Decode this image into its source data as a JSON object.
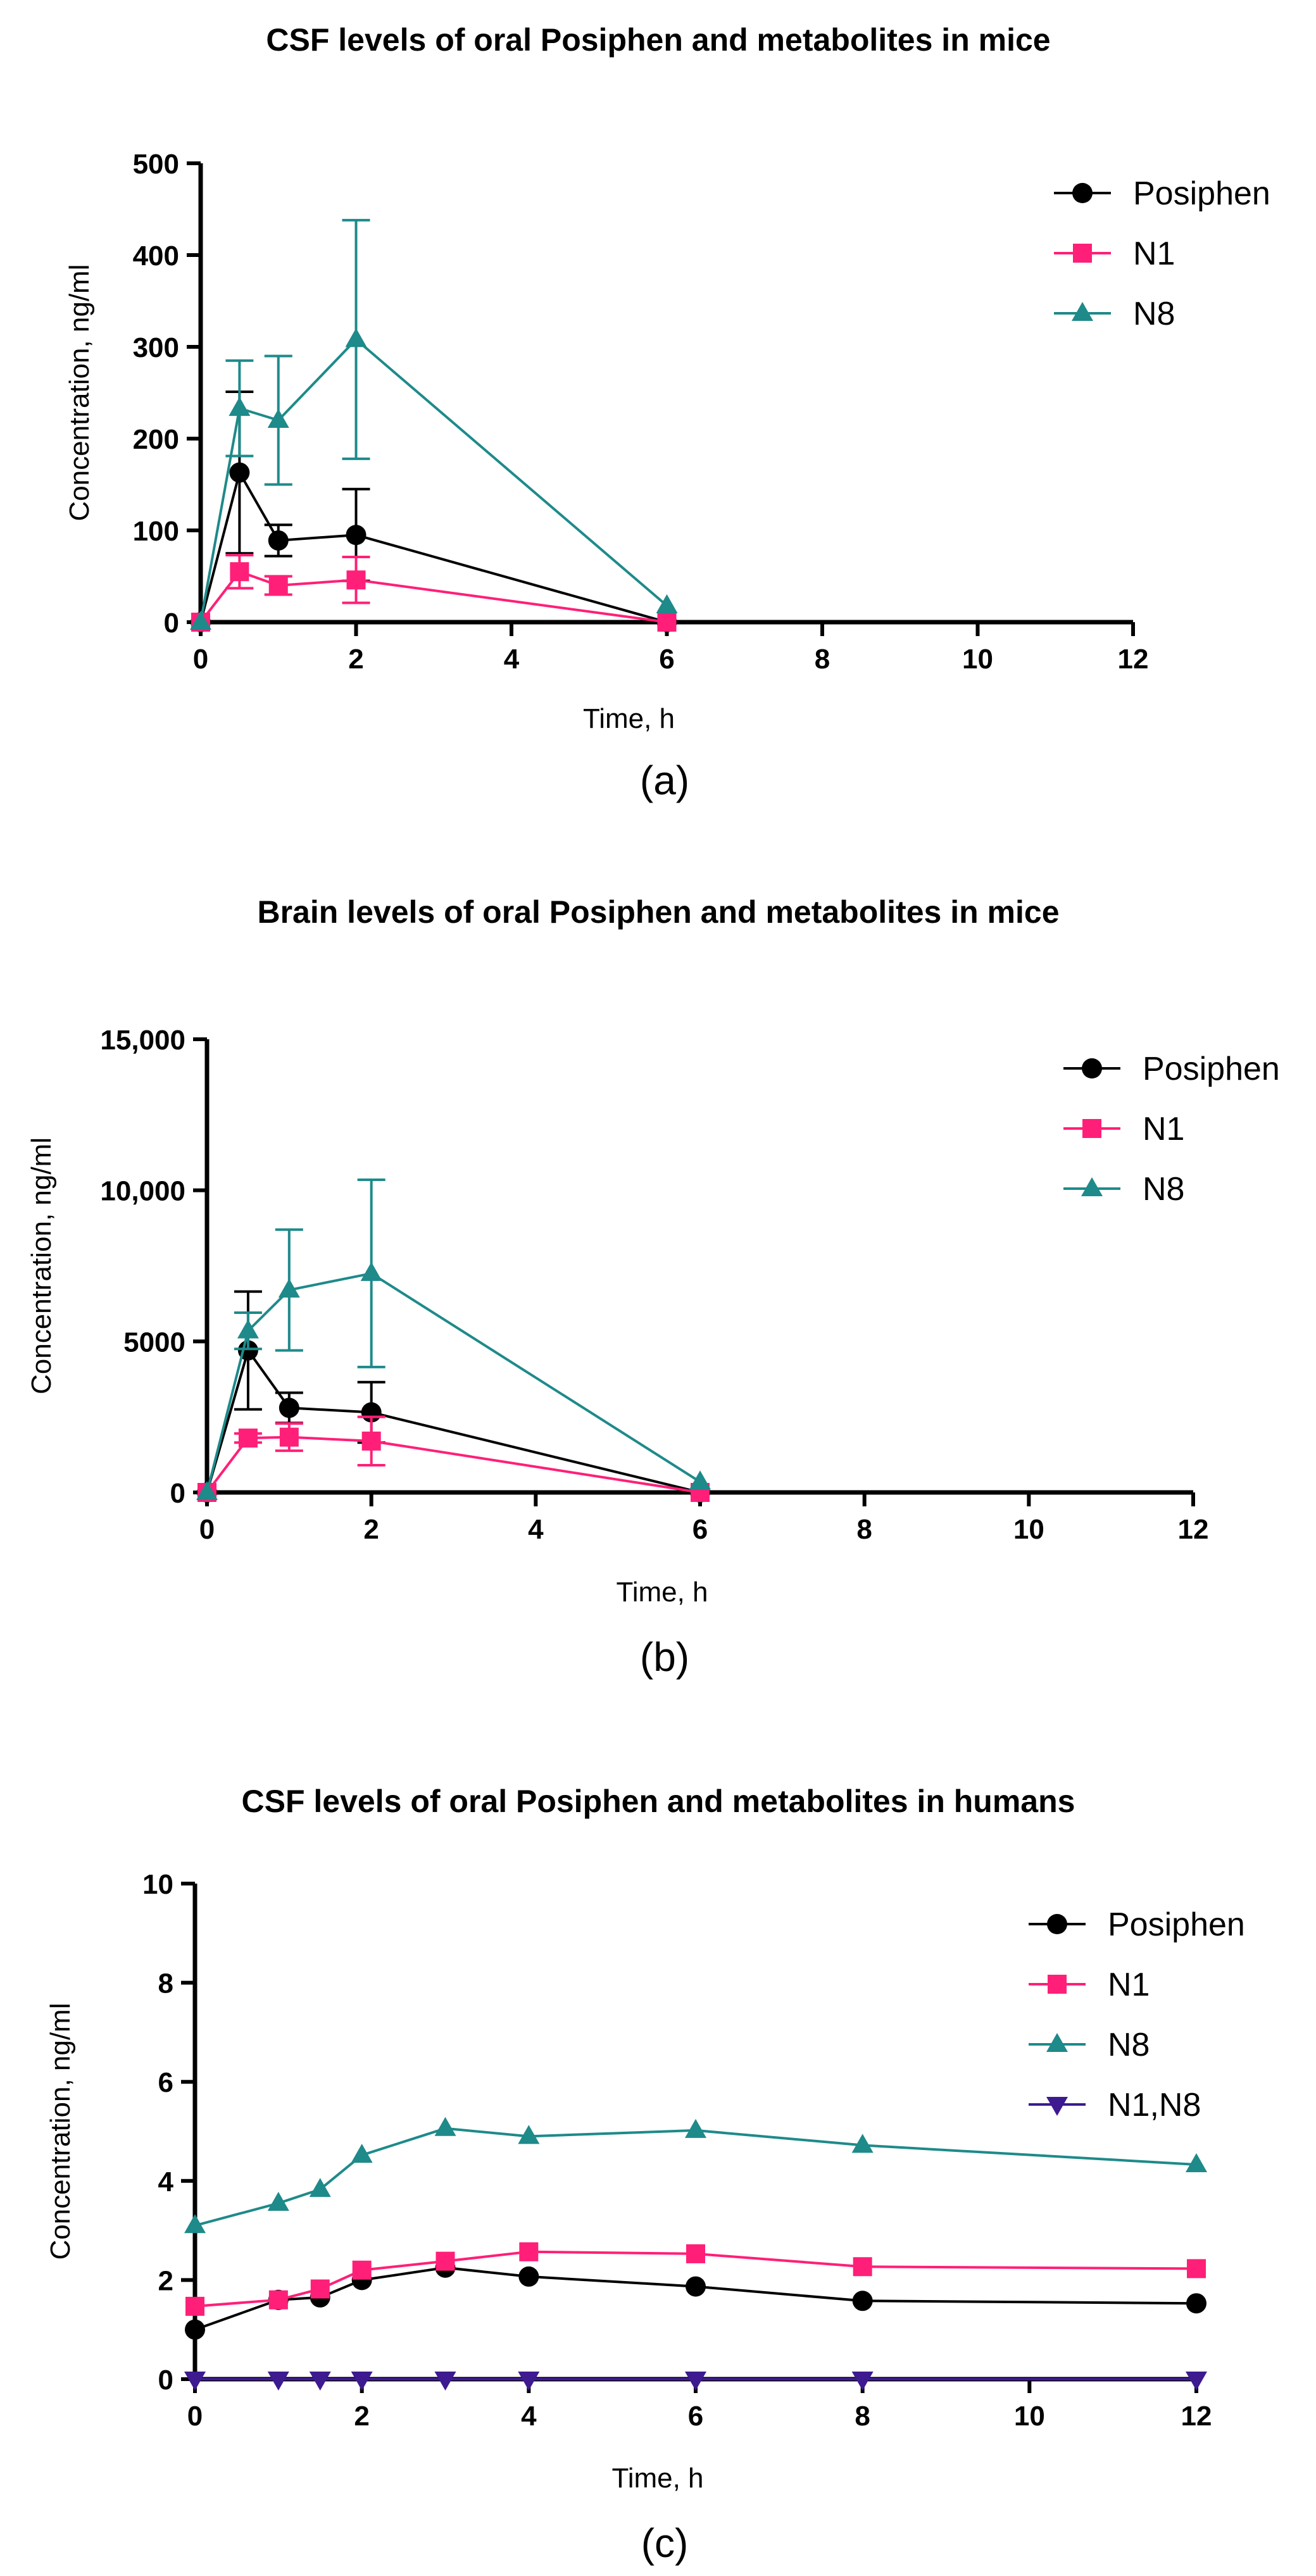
{
  "chart_data": [
    {
      "type": "line",
      "title": "CSF levels of oral Posiphen and metabolites in mice",
      "xlabel": "Time, h",
      "ylabel": "Concentration, ng/ml",
      "caption": "(a)",
      "xlim": [
        0,
        12
      ],
      "ylim": [
        0,
        500
      ],
      "xticks": [
        0,
        2,
        4,
        6,
        8,
        10,
        12
      ],
      "xtick_labels": [
        "0",
        "2",
        "4",
        "6",
        "8",
        "10",
        "12"
      ],
      "yticks": [
        0,
        100,
        200,
        300,
        400,
        500
      ],
      "ytick_labels": [
        "0",
        "100",
        "200",
        "300",
        "400",
        "500"
      ],
      "legend_position": "top-right",
      "series": [
        {
          "name": "Posiphen",
          "color": "#000000",
          "marker": "circle",
          "x": [
            0,
            0.5,
            1,
            2,
            6
          ],
          "y": [
            0,
            163,
            89,
            95,
            0
          ],
          "err": [
            0,
            88,
            17,
            50,
            0
          ]
        },
        {
          "name": "N1",
          "color": "#ff1f78",
          "marker": "square",
          "x": [
            0,
            0.5,
            1,
            2,
            6
          ],
          "y": [
            0,
            55,
            40,
            46,
            0
          ],
          "err": [
            0,
            18,
            10,
            25,
            0
          ]
        },
        {
          "name": "N8",
          "color": "#1e8a8a",
          "marker": "triangle",
          "x": [
            0,
            0.5,
            1,
            2,
            6
          ],
          "y": [
            0,
            233,
            220,
            308,
            18
          ],
          "err": [
            0,
            52,
            70,
            130,
            0
          ]
        }
      ]
    },
    {
      "type": "line",
      "title": "Brain levels of oral Posiphen and metabolites in mice",
      "xlabel": "Time, h",
      "ylabel": "Concentration, ng/ml",
      "caption": "(b)",
      "xlim": [
        0,
        12
      ],
      "ylim": [
        0,
        15000
      ],
      "xticks": [
        0,
        2,
        4,
        6,
        8,
        10,
        12
      ],
      "xtick_labels": [
        "0",
        "2",
        "4",
        "6",
        "8",
        "10",
        "12"
      ],
      "yticks": [
        0,
        5000,
        10000,
        15000
      ],
      "ytick_labels": [
        "0",
        "5000",
        "10,000",
        "15,000"
      ],
      "legend_position": "top-right",
      "series": [
        {
          "name": "Posiphen",
          "color": "#000000",
          "marker": "circle",
          "x": [
            0,
            0.5,
            1,
            2,
            6
          ],
          "y": [
            0,
            4700,
            2800,
            2650,
            0
          ],
          "err": [
            0,
            1950,
            500,
            1000,
            0
          ]
        },
        {
          "name": "N1",
          "color": "#ff1f78",
          "marker": "square",
          "x": [
            0,
            0.5,
            1,
            2,
            6
          ],
          "y": [
            0,
            1800,
            1830,
            1700,
            0
          ],
          "err": [
            0,
            150,
            450,
            800,
            0
          ]
        },
        {
          "name": "N8",
          "color": "#1e8a8a",
          "marker": "triangle",
          "x": [
            0,
            0.5,
            1,
            2,
            6
          ],
          "y": [
            0,
            5350,
            6700,
            7250,
            350
          ],
          "err": [
            0,
            600,
            2000,
            3100,
            0
          ]
        }
      ]
    },
    {
      "type": "line",
      "title": "CSF levels of oral Posiphen and metabolites in humans",
      "xlabel": "Time, h",
      "ylabel": "Concentration, ng/ml",
      "caption": "(c)",
      "xlim": [
        0,
        12
      ],
      "ylim": [
        0,
        10
      ],
      "xticks": [
        0,
        2,
        4,
        6,
        8,
        10,
        12
      ],
      "xtick_labels": [
        "0",
        "2",
        "4",
        "6",
        "8",
        "10",
        "12"
      ],
      "yticks": [
        0,
        2,
        4,
        6,
        8,
        10
      ],
      "ytick_labels": [
        "0",
        "2",
        "4",
        "6",
        "8",
        "10"
      ],
      "legend_position": "top-right",
      "series": [
        {
          "name": "Posiphen",
          "color": "#000000",
          "marker": "circle",
          "x": [
            0,
            1,
            1.5,
            2,
            3,
            4,
            6,
            8,
            12
          ],
          "y": [
            1.0,
            1.6,
            1.65,
            2.0,
            2.25,
            2.07,
            1.87,
            1.58,
            1.53
          ]
        },
        {
          "name": "N1",
          "color": "#ff1f78",
          "marker": "square",
          "x": [
            0,
            1,
            1.5,
            2,
            3,
            4,
            6,
            8,
            12
          ],
          "y": [
            1.47,
            1.6,
            1.82,
            2.2,
            2.38,
            2.57,
            2.53,
            2.27,
            2.23
          ]
        },
        {
          "name": "N8",
          "color": "#1e8a8a",
          "marker": "triangle",
          "x": [
            0,
            1,
            1.5,
            2,
            3,
            4,
            6,
            8,
            12
          ],
          "y": [
            3.1,
            3.55,
            3.83,
            4.52,
            5.06,
            4.9,
            5.02,
            4.72,
            4.33
          ]
        },
        {
          "name": "N1,N8",
          "color": "#3d1a8f",
          "marker": "triangle-down",
          "x": [
            0,
            1,
            1.5,
            2,
            3,
            4,
            6,
            8,
            12
          ],
          "y": [
            0,
            0,
            0,
            0,
            0,
            0,
            0,
            0,
            0
          ]
        }
      ]
    }
  ]
}
